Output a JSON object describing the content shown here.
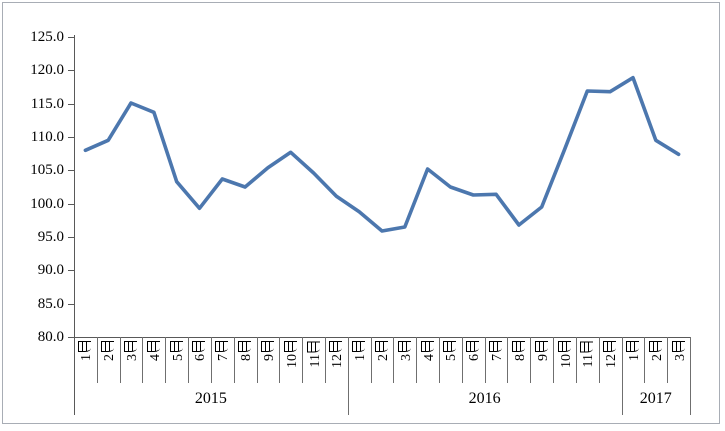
{
  "chart_data": {
    "type": "line",
    "title": "",
    "xlabel": "",
    "ylabel": "",
    "ylim": [
      80,
      125
    ],
    "ytick_step": 5,
    "ytick_labels": [
      "125.0",
      "120.0",
      "115.0",
      "110.0",
      "105.0",
      "100.0",
      "95.0",
      "90.0",
      "85.0",
      "80.0"
    ],
    "grid": false,
    "legend": false,
    "x_groups": [
      {
        "year": "2015",
        "months": [
          "1月",
          "2月",
          "3月",
          "4月",
          "5月",
          "6月",
          "7月",
          "8月",
          "9月",
          "10月",
          "11月",
          "12月"
        ]
      },
      {
        "year": "2016",
        "months": [
          "1月",
          "2月",
          "3月",
          "4月",
          "5月",
          "6月",
          "7月",
          "8月",
          "9月",
          "10月",
          "11月",
          "12月"
        ]
      },
      {
        "year": "2017",
        "months": [
          "1月",
          "2月",
          "3月"
        ]
      }
    ],
    "series": [
      {
        "name": "",
        "values": [
          108.0,
          109.5,
          115.1,
          113.7,
          103.3,
          99.3,
          103.7,
          102.5,
          105.4,
          107.7,
          104.6,
          101.1,
          98.8,
          95.9,
          96.5,
          105.2,
          102.5,
          101.3,
          101.4,
          96.8,
          99.5,
          108.1,
          116.9,
          116.8,
          118.9,
          109.5,
          107.4
        ]
      }
    ],
    "colors": {
      "line": "#4c77ae",
      "axis": "#595959",
      "separator": "#6f6f6f",
      "text": "#000000",
      "frame_border": "#a8adb5",
      "background": "#ffffff"
    }
  }
}
